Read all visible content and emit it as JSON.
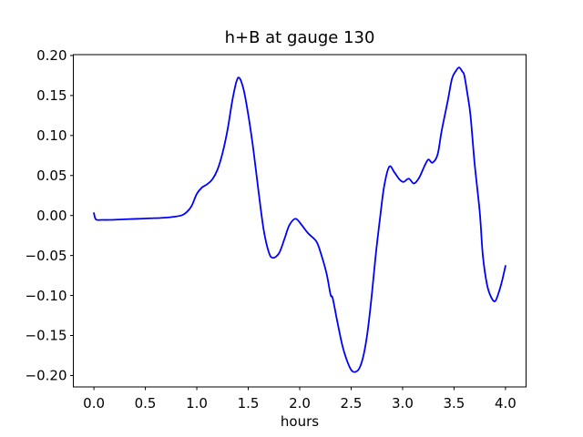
{
  "figure": {
    "background": "#ffffff"
  },
  "chart_data": {
    "type": "line",
    "title": "h+B at gauge 130",
    "xlabel": "hours",
    "ylabel": "",
    "grid": false,
    "legend": null,
    "axis_color": "#000000",
    "xlim": [
      -0.2,
      4.2
    ],
    "ylim": [
      -0.2143,
      0.2011
    ],
    "xticks": [
      0.0,
      0.5,
      1.0,
      1.5,
      2.0,
      2.5,
      3.0,
      3.5,
      4.0
    ],
    "xtick_labels": [
      "0.0",
      "0.5",
      "1.0",
      "1.5",
      "2.0",
      "2.5",
      "3.0",
      "3.5",
      "4.0"
    ],
    "yticks": [
      -0.2,
      -0.15,
      -0.1,
      -0.05,
      0.0,
      0.05,
      0.1,
      0.15,
      0.2
    ],
    "ytick_labels": [
      "−0.20",
      "−0.15",
      "−0.10",
      "−0.05",
      "0.00",
      "0.05",
      "0.10",
      "0.15",
      "0.20"
    ],
    "series": [
      {
        "name": "h+B",
        "color": "#0000ff",
        "x": [
          0.0,
          0.02,
          0.08,
          0.15,
          0.25,
          0.35,
          0.45,
          0.55,
          0.65,
          0.75,
          0.85,
          0.9,
          0.95,
          1.0,
          1.05,
          1.1,
          1.15,
          1.2,
          1.25,
          1.3,
          1.35,
          1.4,
          1.45,
          1.5,
          1.55,
          1.6,
          1.65,
          1.7,
          1.74,
          1.8,
          1.85,
          1.9,
          1.96,
          2.02,
          2.08,
          2.16,
          2.2,
          2.26,
          2.3,
          2.32,
          2.36,
          2.41,
          2.45,
          2.5,
          2.54,
          2.58,
          2.62,
          2.66,
          2.7,
          2.74,
          2.78,
          2.82,
          2.87,
          2.92,
          2.97,
          3.01,
          3.06,
          3.11,
          3.16,
          3.21,
          3.25,
          3.29,
          3.34,
          3.38,
          3.44,
          3.48,
          3.52,
          3.55,
          3.58,
          3.6,
          3.63,
          3.66,
          3.7,
          3.75,
          3.78,
          3.82,
          3.86,
          3.9,
          3.94,
          3.97,
          4.0
        ],
        "y": [
          0.003,
          -0.005,
          -0.0055,
          -0.0055,
          -0.005,
          -0.0045,
          -0.004,
          -0.0035,
          -0.003,
          -0.002,
          0.0,
          0.004,
          0.012,
          0.027,
          0.035,
          0.039,
          0.045,
          0.057,
          0.078,
          0.108,
          0.147,
          0.172,
          0.16,
          0.126,
          0.082,
          0.03,
          -0.018,
          -0.046,
          -0.053,
          -0.047,
          -0.03,
          -0.012,
          -0.004,
          -0.012,
          -0.022,
          -0.032,
          -0.045,
          -0.072,
          -0.099,
          -0.103,
          -0.129,
          -0.16,
          -0.178,
          -0.193,
          -0.1955,
          -0.191,
          -0.175,
          -0.145,
          -0.1,
          -0.048,
          -0.004,
          0.036,
          0.061,
          0.054,
          0.045,
          0.042,
          0.046,
          0.04,
          0.047,
          0.061,
          0.07,
          0.066,
          0.076,
          0.106,
          0.144,
          0.171,
          0.181,
          0.185,
          0.18,
          0.175,
          0.152,
          0.125,
          0.065,
          0.004,
          -0.05,
          -0.086,
          -0.102,
          -0.107,
          -0.094,
          -0.08,
          -0.063
        ]
      }
    ]
  }
}
